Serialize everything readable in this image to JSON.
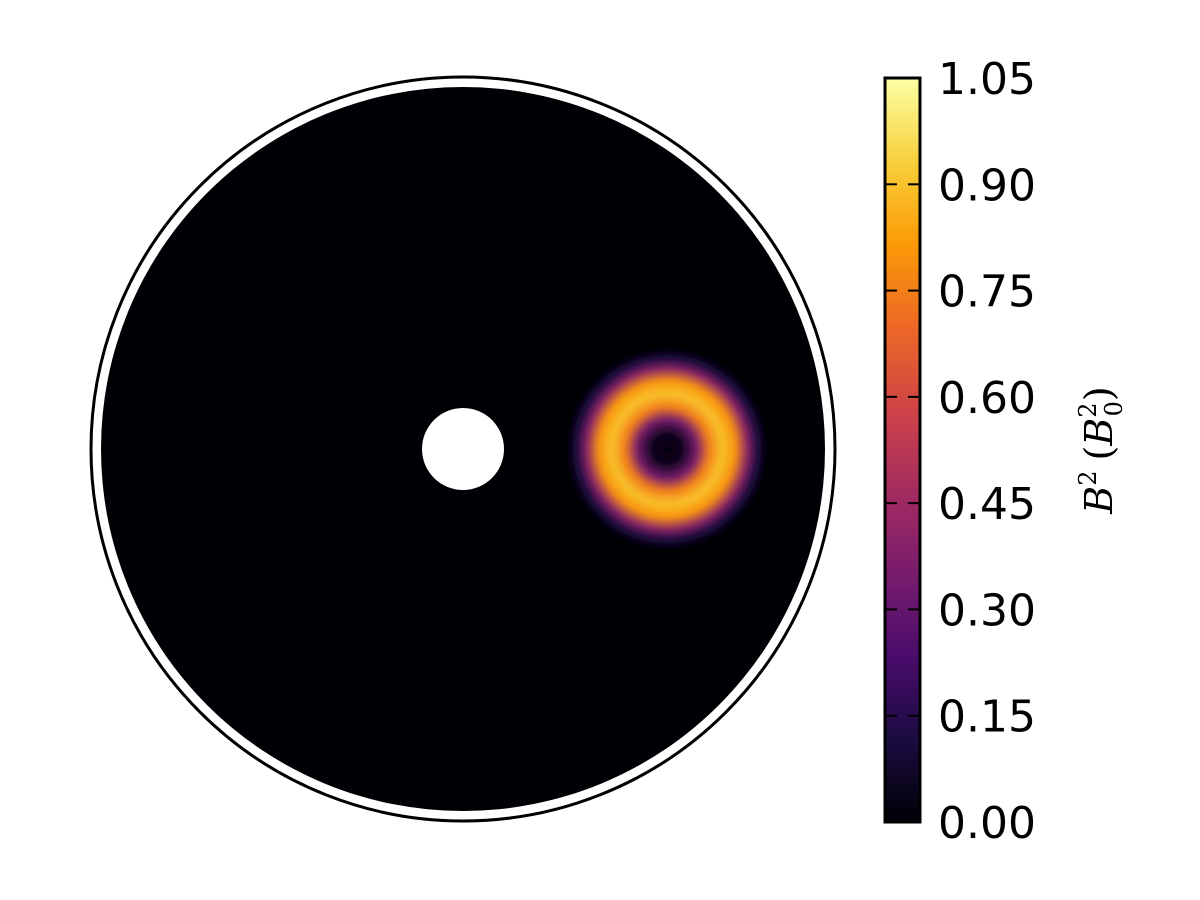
{
  "chart_data": {
    "type": "heatmap",
    "projection": "polar-disk",
    "title": "",
    "colormap": "inferno",
    "colorbar": {
      "label_symbol": "B",
      "label_exponent": "2",
      "label_unit_symbol": "B",
      "label_unit_subscript": "0",
      "label_unit_exponent": "2",
      "label_open": "(",
      "label_close": ")",
      "vmin": 0.0,
      "vmax": 1.05,
      "ticks": [
        "1.05",
        "0.90",
        "0.75",
        "0.60",
        "0.45",
        "0.30",
        "0.15",
        "0.00"
      ],
      "tick_values": [
        1.05,
        0.9,
        0.75,
        0.6,
        0.45,
        0.3,
        0.15,
        0.0
      ],
      "colorstops": [
        "#000004",
        "#1b0c41",
        "#4a0c6b",
        "#781c6d",
        "#a52c60",
        "#cf4446",
        "#ed6925",
        "#fb9b06",
        "#f7d13d",
        "#fcffa4"
      ]
    },
    "field": {
      "background_value": 0.0,
      "annulus_peak_value": 0.9,
      "annulus_core_value": 0.02,
      "inner_hole": true,
      "outer_boundary_ring": true
    }
  }
}
